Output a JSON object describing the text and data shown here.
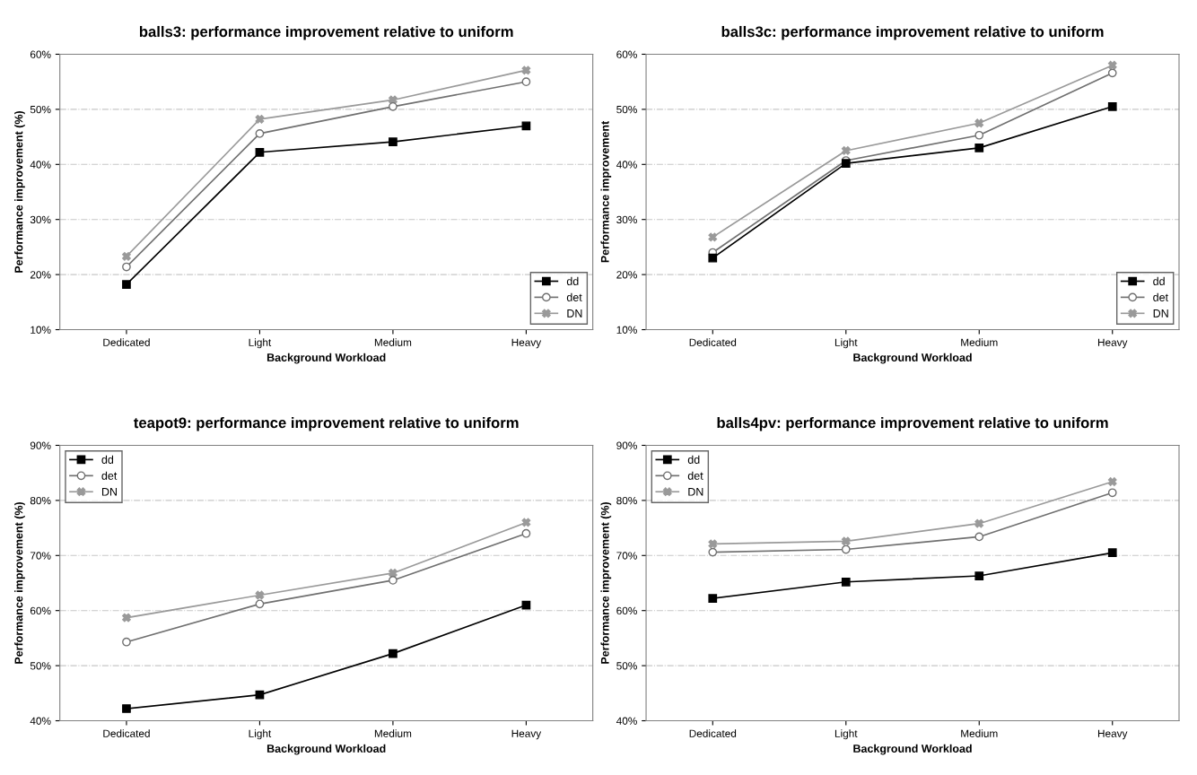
{
  "chart_data": [
    {
      "type": "line",
      "title": "balls3: performance improvement relative to uniform",
      "xlabel": "Background Workload",
      "ylabel": "Performance improvement (%)",
      "categories": [
        "Dedicated",
        "Light",
        "Medium",
        "Heavy"
      ],
      "ylim": [
        10,
        60
      ],
      "yticks": [
        {
          "value": 10,
          "label": "10%"
        },
        {
          "value": 20,
          "label": "20%"
        },
        {
          "value": 30,
          "label": "30%"
        },
        {
          "value": 40,
          "label": "40%"
        },
        {
          "value": 50,
          "label": "50%"
        },
        {
          "value": 60,
          "label": "60%"
        }
      ],
      "grid": "y",
      "legend": "bottom right",
      "series": [
        {
          "name": "dd",
          "color": "#000000",
          "marker": "square",
          "values": [
            18.2,
            42.2,
            44.1,
            47.0
          ]
        },
        {
          "name": "det",
          "color": "#707070",
          "marker": "circle",
          "values": [
            21.4,
            45.6,
            50.5,
            55.0
          ]
        },
        {
          "name": "DN",
          "color": "#9a9a9a",
          "marker": "cross",
          "values": [
            23.3,
            48.2,
            51.7,
            57.1
          ]
        }
      ]
    },
    {
      "type": "line",
      "title": "balls3c: performance improvement relative to uniform",
      "xlabel": "Background Workload",
      "ylabel": "Performance improvement",
      "categories": [
        "Dedicated",
        "Light",
        "Medium",
        "Heavy"
      ],
      "ylim": [
        10,
        60
      ],
      "yticks": [
        {
          "value": 10,
          "label": "10%"
        },
        {
          "value": 20,
          "label": "20%"
        },
        {
          "value": 30,
          "label": "30%"
        },
        {
          "value": 40,
          "label": "40%"
        },
        {
          "value": 50,
          "label": "50%"
        },
        {
          "value": 60,
          "label": "60%"
        }
      ],
      "grid": "y",
      "legend": "bottom right",
      "series": [
        {
          "name": "dd",
          "color": "#000000",
          "marker": "square",
          "values": [
            23.0,
            40.2,
            43.0,
            50.5
          ]
        },
        {
          "name": "det",
          "color": "#707070",
          "marker": "circle",
          "values": [
            24.0,
            40.7,
            45.3,
            56.6
          ]
        },
        {
          "name": "DN",
          "color": "#9a9a9a",
          "marker": "cross",
          "values": [
            26.8,
            42.5,
            47.5,
            58.0
          ]
        }
      ]
    },
    {
      "type": "line",
      "title": "teapot9: performance improvement relative to uniform",
      "xlabel": "Background Workload",
      "ylabel": "Performance improvement (%)",
      "categories": [
        "Dedicated",
        "Light",
        "Medium",
        "Heavy"
      ],
      "ylim": [
        40,
        90
      ],
      "yticks": [
        {
          "value": 40,
          "label": "40%"
        },
        {
          "value": 50,
          "label": "50%"
        },
        {
          "value": 60,
          "label": "60%"
        },
        {
          "value": 70,
          "label": "70%"
        },
        {
          "value": 80,
          "label": "80%"
        },
        {
          "value": 90,
          "label": "90%"
        }
      ],
      "grid": "y",
      "legend": "top left",
      "series": [
        {
          "name": "dd",
          "color": "#000000",
          "marker": "square",
          "values": [
            42.2,
            44.7,
            52.2,
            61.0
          ]
        },
        {
          "name": "det",
          "color": "#707070",
          "marker": "circle",
          "values": [
            54.3,
            61.2,
            65.5,
            74.0
          ]
        },
        {
          "name": "DN",
          "color": "#9a9a9a",
          "marker": "cross",
          "values": [
            58.7,
            62.8,
            66.8,
            76.0
          ]
        }
      ]
    },
    {
      "type": "line",
      "title": "balls4pv: performance improvement relative to uniform",
      "xlabel": "Background Workload",
      "ylabel": "Performance improvement (%)",
      "categories": [
        "Dedicated",
        "Light",
        "Medium",
        "Heavy"
      ],
      "ylim": [
        40,
        90
      ],
      "yticks": [
        {
          "value": 40,
          "label": "40%"
        },
        {
          "value": 50,
          "label": "50%"
        },
        {
          "value": 60,
          "label": "60%"
        },
        {
          "value": 70,
          "label": "70%"
        },
        {
          "value": 80,
          "label": "80%"
        },
        {
          "value": 90,
          "label": "90%"
        }
      ],
      "grid": "y",
      "legend": "top left",
      "series": [
        {
          "name": "dd",
          "color": "#000000",
          "marker": "square",
          "values": [
            62.2,
            65.2,
            66.3,
            70.5
          ]
        },
        {
          "name": "det",
          "color": "#707070",
          "marker": "circle",
          "values": [
            70.6,
            71.1,
            73.4,
            81.4
          ]
        },
        {
          "name": "DN",
          "color": "#9a9a9a",
          "marker": "cross",
          "values": [
            72.1,
            72.6,
            75.8,
            83.4
          ]
        }
      ]
    }
  ]
}
